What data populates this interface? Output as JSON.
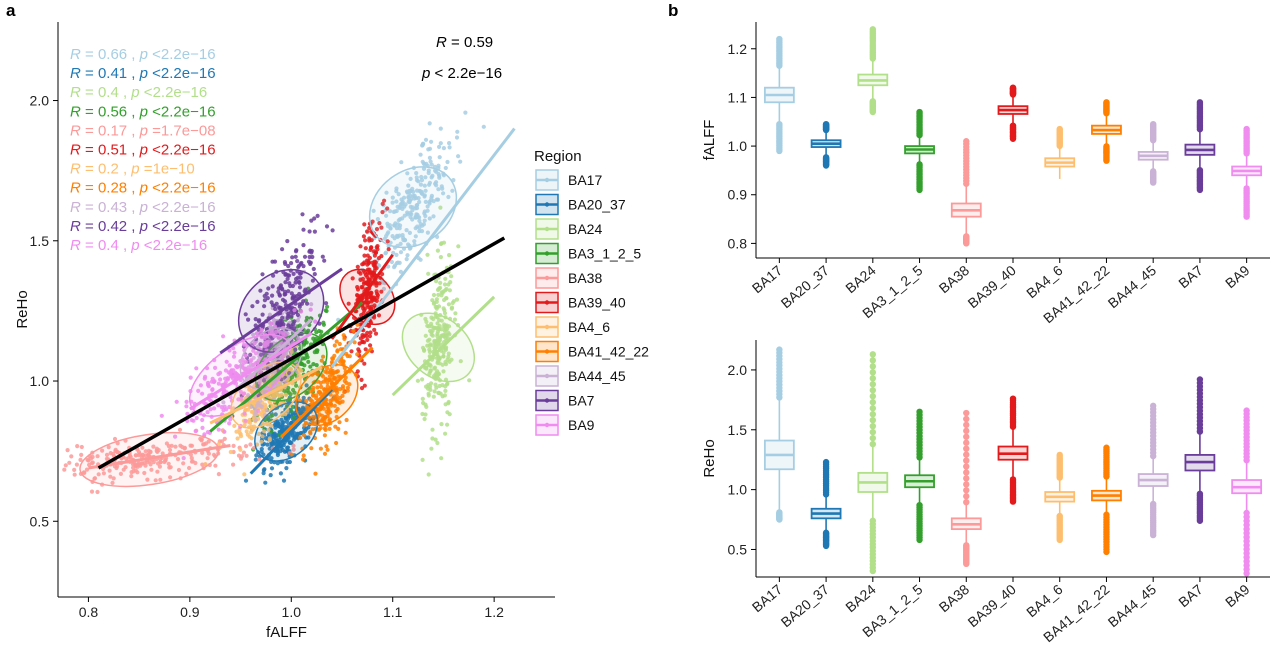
{
  "panels": {
    "a": "a",
    "b": "b"
  },
  "regions": [
    "BA17",
    "BA20_37",
    "BA24",
    "BA3_1_2_5",
    "BA38",
    "BA39_40",
    "BA4_6",
    "BA41_42_22",
    "BA44_45",
    "BA7",
    "BA9"
  ],
  "colors": [
    "#a6cee3",
    "#1f78b4",
    "#b2df8a",
    "#33a02c",
    "#fb9a99",
    "#e31a1c",
    "#fdbf6f",
    "#ff7f00",
    "#cab2d6",
    "#6a3d9a",
    "#f08cf0"
  ],
  "legend_title": "Region",
  "overall_r": {
    "R": "R",
    "r_value": " = 0.59",
    "p": "p",
    "p_value": " < 2.2e−16"
  },
  "correlations": [
    {
      "r": "0.66",
      "p": "<2.2e−16"
    },
    {
      "r": "0.41",
      "p": "<2.2e−16"
    },
    {
      "r": "0.4",
      "p": "<2.2e−16"
    },
    {
      "r": "0.56",
      "p": "<2.2e−16"
    },
    {
      "r": "0.17",
      "p": "=1.7e−08"
    },
    {
      "r": "0.51",
      "p": "<2.2e−16"
    },
    {
      "r": "0.2",
      "p": "=1e−10"
    },
    {
      "r": "0.28",
      "p": "<2.2e−16"
    },
    {
      "r": "0.43",
      "p": "<2.2e−16"
    },
    {
      "r": "0.42",
      "p": "<2.2e−16"
    },
    {
      "r": "0.4",
      "p": "<2.2e−16"
    }
  ],
  "chart_data": [
    {
      "type": "scatter",
      "panel": "a",
      "xlabel": "fALFF",
      "ylabel": "ReHo",
      "xlim": [
        0.77,
        1.26
      ],
      "ylim": [
        0.23,
        2.28
      ],
      "xticks": [
        "0.8",
        "0.9",
        "1.0",
        "1.1",
        "1.2"
      ],
      "yticks": [
        "0.5",
        "1.0",
        "1.5",
        "2.0"
      ],
      "overall_fit": {
        "x": [
          0.81,
          1.21
        ],
        "y": [
          0.69,
          1.51
        ]
      },
      "series": [
        {
          "name": "BA17",
          "center": [
            1.12,
            1.62
          ],
          "spread": [
            0.04,
            0.2
          ],
          "rot": 1.05,
          "fit": {
            "x": [
              1.04,
              1.22
            ],
            "y": [
              1.05,
              1.9
            ]
          }
        },
        {
          "name": "BA20_37",
          "center": [
            0.995,
            0.82
          ],
          "spread": [
            0.03,
            0.1
          ],
          "rot": 1.15,
          "fit": {
            "x": [
              0.96,
              1.04
            ],
            "y": [
              0.67,
              0.97
            ]
          }
        },
        {
          "name": "BA24",
          "center": [
            1.145,
            1.12
          ],
          "spread": [
            0.025,
            0.22
          ],
          "rot": 1.45,
          "fit": {
            "x": [
              1.1,
              1.2
            ],
            "y": [
              0.95,
              1.3
            ]
          }
        },
        {
          "name": "BA3_1_2_5",
          "center": [
            1.0,
            1.05
          ],
          "spread": [
            0.035,
            0.15
          ],
          "rot": 1.2,
          "fit": {
            "x": [
              0.92,
              1.07
            ],
            "y": [
              0.82,
              1.28
            ]
          }
        },
        {
          "name": "BA38",
          "center": [
            0.86,
            0.72
          ],
          "spread": [
            0.06,
            0.12
          ],
          "rot": 0.25,
          "fit": {
            "x": [
              0.8,
              0.94
            ],
            "y": [
              0.69,
              0.77
            ]
          }
        },
        {
          "name": "BA39_40",
          "center": [
            1.075,
            1.3
          ],
          "spread": [
            0.02,
            0.17
          ],
          "rot": 1.3,
          "fit": {
            "x": [
              1.04,
              1.1
            ],
            "y": [
              1.15,
              1.45
            ]
          }
        },
        {
          "name": "BA4_6",
          "center": [
            0.975,
            0.95
          ],
          "spread": [
            0.035,
            0.12
          ],
          "rot": 1.2,
          "fit": {
            "x": [
              0.92,
              1.03
            ],
            "y": [
              0.85,
              1.05
            ]
          }
        },
        {
          "name": "BA41_42_22",
          "center": [
            1.035,
            0.95
          ],
          "spread": [
            0.03,
            0.14
          ],
          "rot": 1.25,
          "fit": {
            "x": [
              0.99,
              1.08
            ],
            "y": [
              0.8,
              1.12
            ]
          }
        },
        {
          "name": "BA44_45",
          "center": [
            0.98,
            1.08
          ],
          "spread": [
            0.03,
            0.14
          ],
          "rot": 1.3,
          "fit": {
            "x": [
              0.94,
              1.02
            ],
            "y": [
              0.95,
              1.22
            ]
          }
        },
        {
          "name": "BA7",
          "center": [
            0.99,
            1.25
          ],
          "spread": [
            0.04,
            0.2
          ],
          "rot": 1.2,
          "fit": {
            "x": [
              0.93,
              1.05
            ],
            "y": [
              1.1,
              1.4
            ]
          }
        },
        {
          "name": "BA9",
          "center": [
            0.95,
            1.02
          ],
          "spread": [
            0.05,
            0.16
          ],
          "rot": 1.0,
          "fit": {
            "x": [
              0.9,
              1.02
            ],
            "y": [
              0.9,
              1.17
            ]
          }
        }
      ]
    },
    {
      "type": "box",
      "panel": "b-top",
      "ylabel": "fALFF",
      "ylim": [
        0.77,
        1.255
      ],
      "yticks": [
        "0.8",
        "0.9",
        "1.0",
        "1.1",
        "1.2"
      ],
      "categories": [
        "BA17",
        "BA20_37",
        "BA24",
        "BA3_1_2_5",
        "BA38",
        "BA39_40",
        "BA4_6",
        "BA41_42_22",
        "BA44_45",
        "BA7",
        "BA9"
      ],
      "boxes": [
        {
          "min": 0.99,
          "q1": 1.09,
          "median": 1.105,
          "q3": 1.12,
          "max": 1.22
        },
        {
          "min": 0.96,
          "q1": 0.998,
          "median": 1.005,
          "q3": 1.012,
          "max": 1.045
        },
        {
          "min": 1.07,
          "q1": 1.125,
          "median": 1.135,
          "q3": 1.147,
          "max": 1.24
        },
        {
          "min": 0.91,
          "q1": 0.985,
          "median": 0.993,
          "q3": 1.0,
          "max": 1.07
        },
        {
          "min": 0.8,
          "q1": 0.855,
          "median": 0.868,
          "q3": 0.882,
          "max": 1.01
        },
        {
          "min": 1.015,
          "q1": 1.066,
          "median": 1.074,
          "q3": 1.082,
          "max": 1.12
        },
        {
          "min": 0.93,
          "q1": 0.958,
          "median": 0.966,
          "q3": 0.975,
          "max": 1.035
        },
        {
          "min": 0.97,
          "q1": 1.025,
          "median": 1.033,
          "q3": 1.042,
          "max": 1.09
        },
        {
          "min": 0.925,
          "q1": 0.972,
          "median": 0.98,
          "q3": 0.988,
          "max": 1.045
        },
        {
          "min": 0.91,
          "q1": 0.982,
          "median": 0.992,
          "q3": 1.003,
          "max": 1.09
        },
        {
          "min": 0.855,
          "q1": 0.94,
          "median": 0.949,
          "q3": 0.958,
          "max": 1.035
        }
      ]
    },
    {
      "type": "box",
      "panel": "b-bottom",
      "ylabel": "ReHo",
      "ylim": [
        0.27,
        2.25
      ],
      "yticks": [
        "0.5",
        "1.0",
        "1.5",
        "2.0"
      ],
      "categories": [
        "BA17",
        "BA20_37",
        "BA24",
        "BA3_1_2_5",
        "BA38",
        "BA39_40",
        "BA4_6",
        "BA41_42_22",
        "BA44_45",
        "BA7",
        "BA9"
      ],
      "boxes": [
        {
          "min": 0.75,
          "q1": 1.17,
          "median": 1.29,
          "q3": 1.41,
          "max": 2.17
        },
        {
          "min": 0.53,
          "q1": 0.76,
          "median": 0.8,
          "q3": 0.84,
          "max": 1.23
        },
        {
          "min": 0.32,
          "q1": 0.98,
          "median": 1.06,
          "q3": 1.14,
          "max": 2.13
        },
        {
          "min": 0.58,
          "q1": 1.02,
          "median": 1.07,
          "q3": 1.12,
          "max": 1.65
        },
        {
          "min": 0.38,
          "q1": 0.67,
          "median": 0.71,
          "q3": 0.76,
          "max": 1.64
        },
        {
          "min": 0.9,
          "q1": 1.25,
          "median": 1.3,
          "q3": 1.36,
          "max": 1.76
        },
        {
          "min": 0.58,
          "q1": 0.9,
          "median": 0.94,
          "q3": 0.98,
          "max": 1.29
        },
        {
          "min": 0.48,
          "q1": 0.91,
          "median": 0.95,
          "q3": 0.99,
          "max": 1.35
        },
        {
          "min": 0.62,
          "q1": 1.03,
          "median": 1.08,
          "q3": 1.13,
          "max": 1.7
        },
        {
          "min": 0.74,
          "q1": 1.16,
          "median": 1.23,
          "q3": 1.29,
          "max": 1.92
        },
        {
          "min": 0.3,
          "q1": 0.97,
          "median": 1.02,
          "q3": 1.08,
          "max": 1.66
        }
      ]
    }
  ]
}
